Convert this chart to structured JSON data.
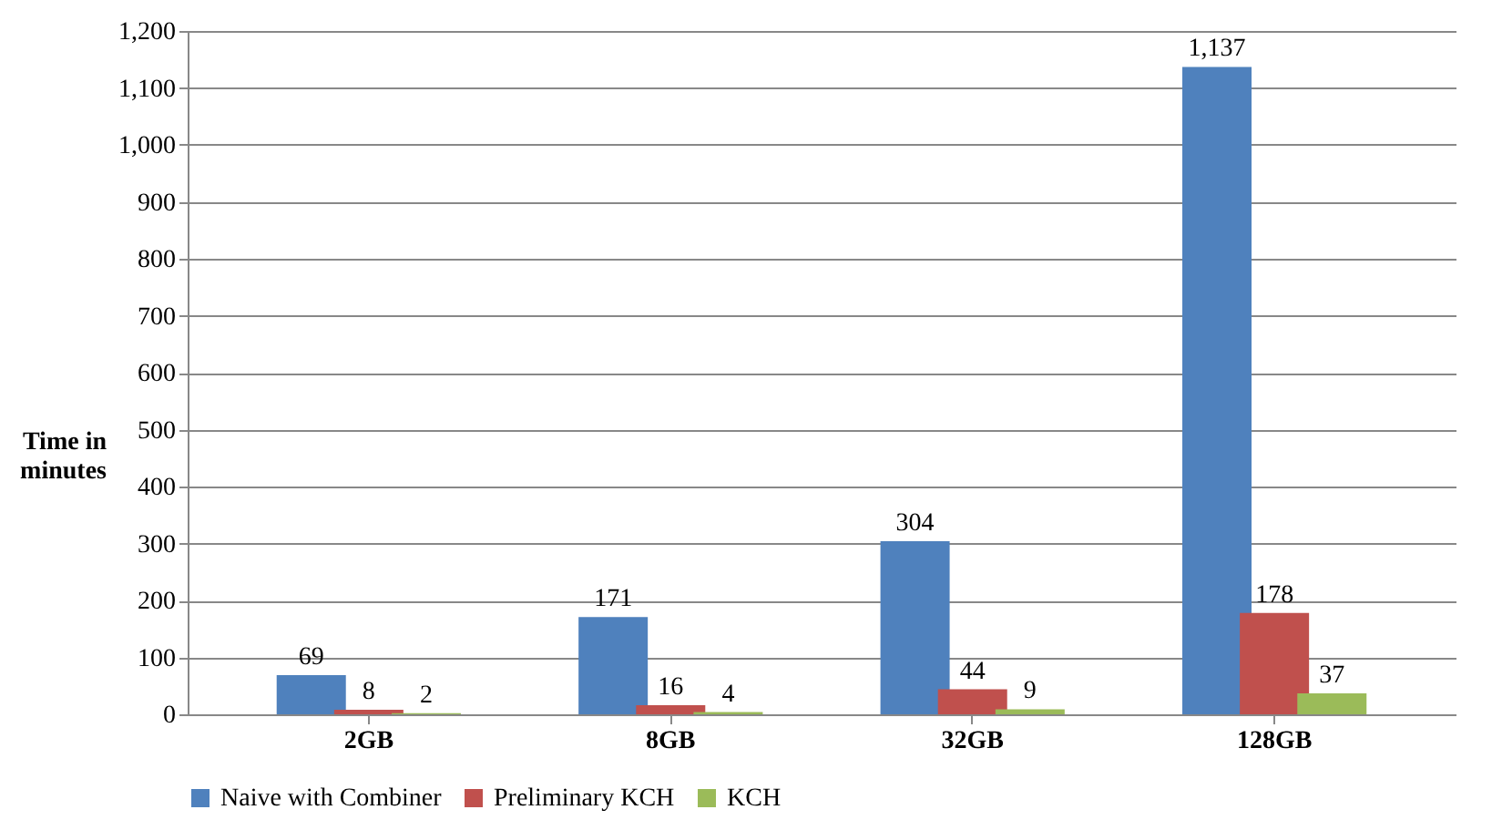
{
  "chart_data": {
    "type": "bar",
    "ylabel": "Time in minutes",
    "categories": [
      "2GB",
      "8GB",
      "32GB",
      "128GB"
    ],
    "series": [
      {
        "name": "Naive with Combiner",
        "color": "#4f81bd",
        "values": [
          69,
          171,
          304,
          1137
        ],
        "value_labels": [
          "69",
          "171",
          "304",
          "1,137"
        ]
      },
      {
        "name": "Preliminary KCH",
        "color": "#c0504d",
        "values": [
          8,
          16,
          44,
          178
        ],
        "value_labels": [
          "8",
          "16",
          "44",
          "178"
        ]
      },
      {
        "name": "KCH",
        "color": "#9bbb59",
        "values": [
          2,
          4,
          9,
          37
        ],
        "value_labels": [
          "2",
          "4",
          "9",
          "37"
        ]
      }
    ],
    "ylim": [
      0,
      1200
    ],
    "yticks": [
      0,
      100,
      200,
      300,
      400,
      500,
      600,
      700,
      800,
      900,
      {
        "value": 1000,
        "label": "1,000"
      },
      {
        "value": 1100,
        "label": "1,100"
      },
      {
        "value": 1200,
        "label": "1,200"
      }
    ],
    "grid": "y",
    "legend": "bottom"
  }
}
